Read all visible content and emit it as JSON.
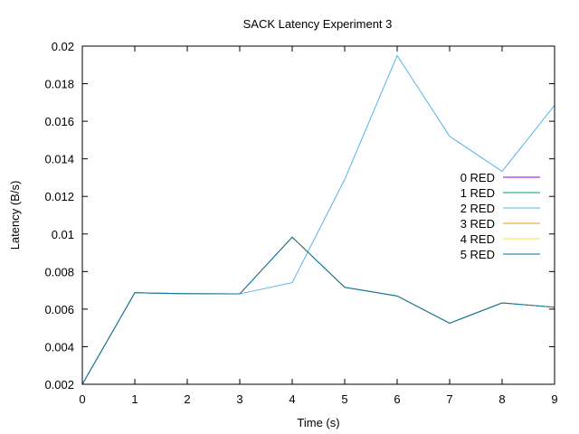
{
  "chart_data": {
    "type": "line",
    "title": "SACK Latency Experiment 3",
    "xlabel": "Time (s)",
    "ylabel": "Latency (B/s)",
    "xlim": [
      0,
      9
    ],
    "ylim": [
      0.002,
      0.02
    ],
    "xticks": [
      "0",
      "1",
      "2",
      "3",
      "4",
      "5",
      "6",
      "7",
      "8",
      "9"
    ],
    "yticks": [
      "0.002",
      "0.004",
      "0.006",
      "0.008",
      "0.01",
      "0.012",
      "0.014",
      "0.016",
      "0.018",
      "0.02"
    ],
    "grid": false,
    "legend_position": "right",
    "x": [
      0,
      1,
      2,
      3,
      4,
      5,
      6,
      7,
      8,
      9
    ],
    "series": [
      {
        "name": "0 RED",
        "color": "#9400d3",
        "values": [
          0.002,
          0.00687,
          0.00682,
          0.00681,
          0.00983,
          0.00716,
          0.0067,
          0.00525,
          0.00633,
          0.0061
        ]
      },
      {
        "name": "1 RED",
        "color": "#009e73",
        "values": [
          0.002,
          0.00687,
          0.00682,
          0.00681,
          0.00983,
          0.00716,
          0.0067,
          0.00525,
          0.00633,
          0.0061
        ]
      },
      {
        "name": "2 RED",
        "color": "#56b4e9",
        "values": [
          0.002,
          0.00687,
          0.00682,
          0.00681,
          0.00741,
          0.0129,
          0.0195,
          0.0152,
          0.01333,
          0.01685
        ]
      },
      {
        "name": "3 RED",
        "color": "#e69f00",
        "values": [
          0.002,
          0.00687,
          0.00682,
          0.00681,
          0.00983,
          0.00716,
          0.0067,
          0.00525,
          0.00633,
          0.0061
        ]
      },
      {
        "name": "4 RED",
        "color": "#f0e442",
        "values": [
          0.002,
          0.00687,
          0.00682,
          0.00681,
          0.00983,
          0.00716,
          0.0067,
          0.00525,
          0.00633,
          0.0061
        ]
      },
      {
        "name": "5 RED",
        "color": "#0072b2",
        "values": [
          0.002,
          0.00687,
          0.00682,
          0.00681,
          0.00983,
          0.00716,
          0.0067,
          0.00525,
          0.00633,
          0.0061
        ]
      }
    ]
  }
}
